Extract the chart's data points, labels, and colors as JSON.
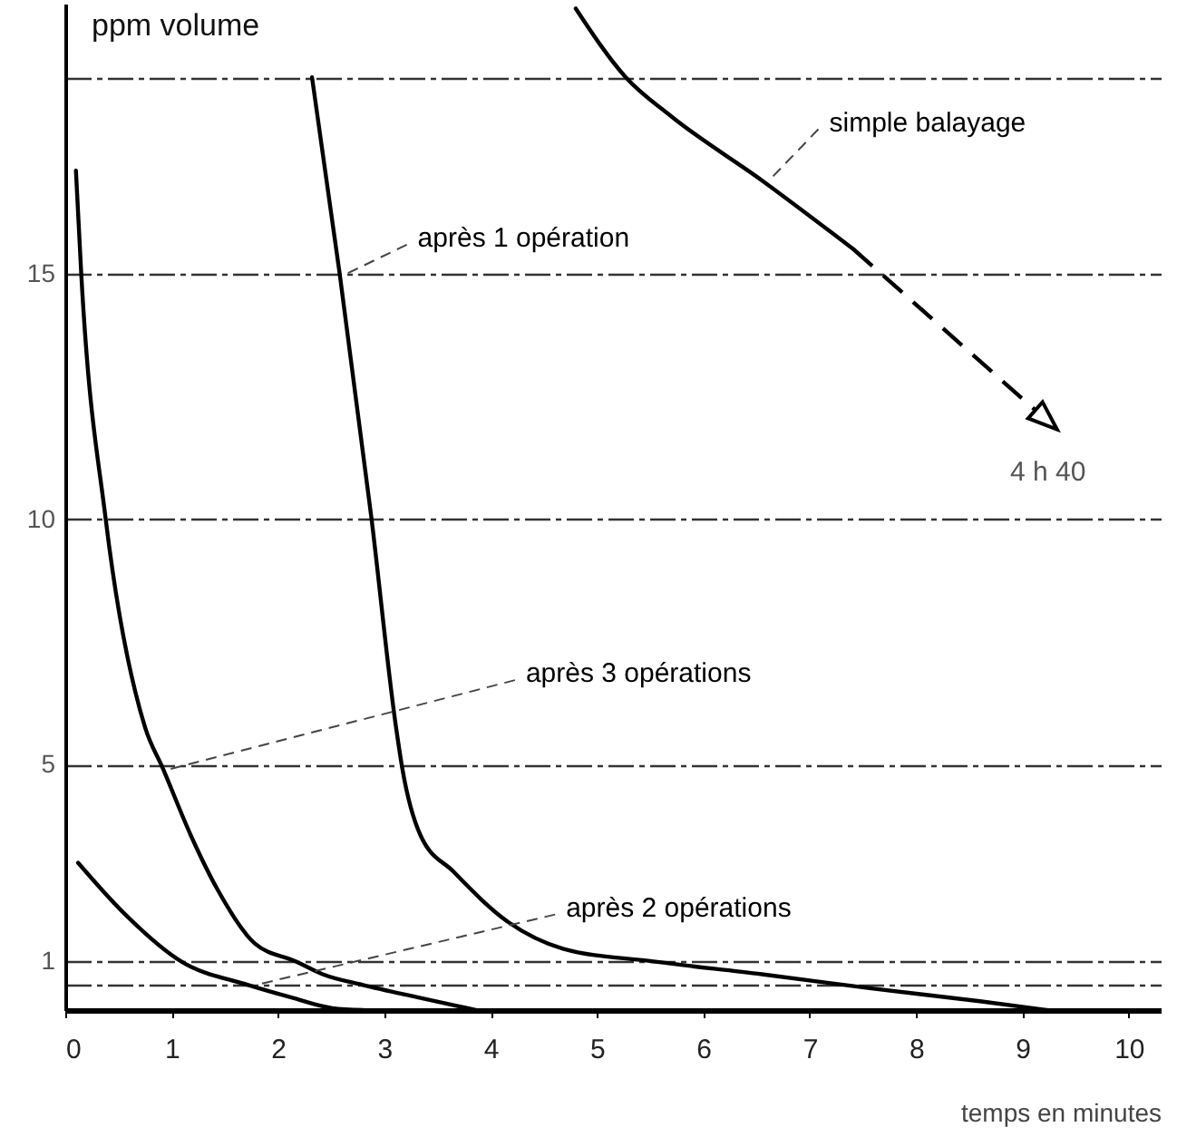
{
  "chart_data": {
    "type": "line",
    "xlabel": "temps en minutes",
    "ylabel": "ppm volume",
    "xlim": [
      0,
      10.3
    ],
    "ylim": [
      0,
      20.5
    ],
    "xticks": [
      0,
      1,
      2,
      3,
      4,
      5,
      6,
      7,
      8,
      9,
      10
    ],
    "yticks": [
      {
        "value": 0.5,
        "label": null
      },
      1,
      5,
      10,
      15,
      {
        "value": 19,
        "label": null
      }
    ],
    "grid": "y",
    "series": [
      {
        "name": "simple balayage",
        "color": "#000000",
        "x": [
          4.8,
          5.27,
          5.7,
          6.55,
          7.41
        ],
        "values": [
          20.4,
          19.0,
          18.2,
          16.9,
          15.5
        ]
      },
      {
        "name": "après 1 opération",
        "color": "#000000",
        "x": [
          2.32,
          2.58,
          2.88,
          3.11,
          3.17,
          3.34,
          3.65,
          4.16,
          4.68,
          5.53,
          6.55,
          7.58,
          8.6,
          9.23
        ],
        "values": [
          19.0,
          15.0,
          10.0,
          5.76,
          4.91,
          3.56,
          2.82,
          1.8,
          1.25,
          0.99,
          0.73,
          0.44,
          0.18,
          0
        ]
      },
      {
        "name": "après 3 opérations",
        "color": "#000000",
        "x": [
          0.1,
          0.15,
          0.38,
          0.75,
          0.92,
          1.18,
          1.43,
          1.78,
          2.17,
          2.42,
          2.8,
          3.31,
          3.86
        ],
        "values": [
          17.1,
          15.0,
          10.0,
          5.76,
          4.91,
          3.56,
          2.46,
          1.36,
          0.99,
          0.73,
          0.51,
          0.26,
          0
        ]
      },
      {
        "name": "après 2 opérations",
        "color": "#000000",
        "x": [
          0.12,
          0.53,
          1.09,
          1.72,
          2.12,
          2.51,
          2.8
        ],
        "values": [
          3.0,
          2.02,
          0.99,
          0.51,
          0.26,
          0.04,
          0
        ]
      }
    ],
    "annotations": [
      "4 h 40"
    ]
  }
}
